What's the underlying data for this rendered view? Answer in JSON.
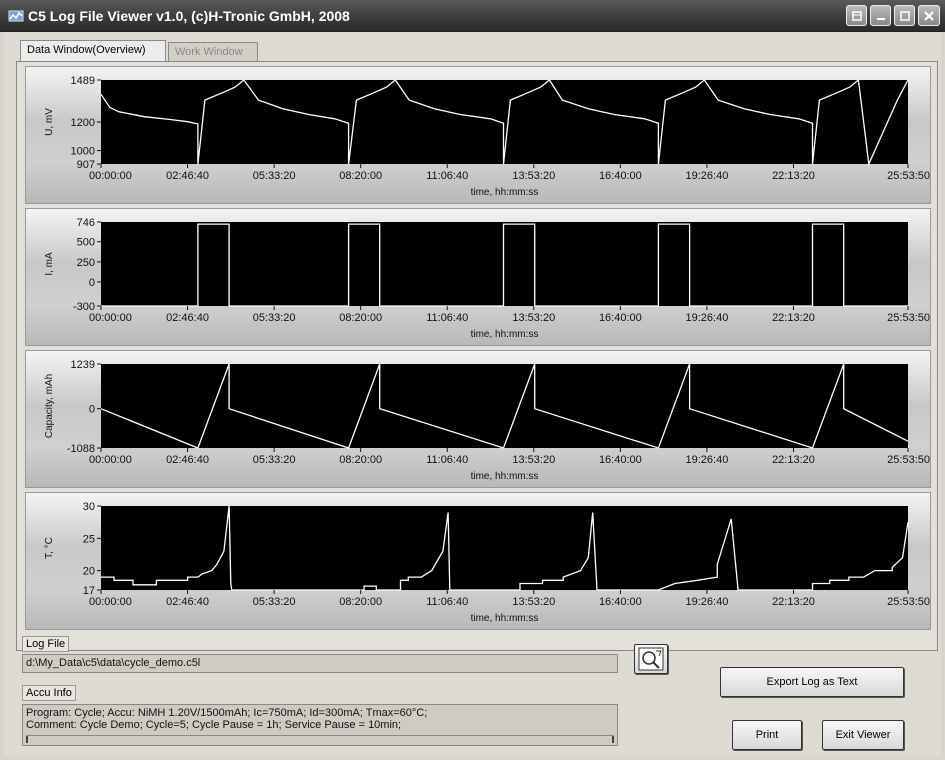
{
  "window": {
    "title": "C5 Log File Viewer v1.0, (c)H-Tronic GmbH, 2008"
  },
  "tabs": [
    {
      "label": "Data Window(Overview)",
      "active": true
    },
    {
      "label": "Work Window",
      "active": false
    }
  ],
  "x_axis": {
    "label": "time, hh:mm:ss",
    "ticks": [
      "00:00:00",
      "02:46:40",
      "05:33:20",
      "08:20:00",
      "11:06:40",
      "13:53:20",
      "16:40:00",
      "19:26:40",
      "22:13:20",
      "25:53:50"
    ]
  },
  "chart_data": [
    {
      "type": "line",
      "ylabel": "U, mV",
      "xlabel": "time, hh:mm:ss",
      "yticks": [
        "1489",
        "1200",
        "1000",
        "907"
      ],
      "ylim": [
        907,
        1489
      ],
      "series_color": "#ffffff",
      "x": [
        0,
        1000,
        2000,
        5000,
        8000,
        10000,
        11200,
        11200,
        12000,
        14000,
        15500,
        16500,
        18200,
        21000,
        24000,
        27000,
        28600,
        28600,
        29500,
        31500,
        33000,
        34000,
        35600,
        38500,
        41500,
        45000,
        46500,
        46500,
        47300,
        49300,
        50800,
        51800,
        53300,
        56300,
        59300,
        62800,
        64400,
        64400,
        65200,
        67200,
        68700,
        69700,
        71300,
        74300,
        77300,
        80600,
        82200,
        82200,
        83000,
        85000,
        86500,
        87500,
        88100,
        88700,
        92000,
        93230
      ],
      "y": [
        1390,
        1300,
        1270,
        1235,
        1215,
        1200,
        1185,
        907,
        1350,
        1400,
        1440,
        1489,
        1350,
        1290,
        1250,
        1220,
        1190,
        907,
        1350,
        1400,
        1440,
        1489,
        1350,
        1290,
        1250,
        1220,
        1190,
        907,
        1350,
        1400,
        1440,
        1489,
        1350,
        1290,
        1250,
        1220,
        1190,
        907,
        1350,
        1400,
        1440,
        1489,
        1350,
        1290,
        1250,
        1220,
        1190,
        907,
        1350,
        1400,
        1440,
        1489,
        1200,
        907,
        1350,
        1489
      ]
    },
    {
      "type": "line",
      "ylabel": "I, mA",
      "xlabel": "time, hh:mm:ss",
      "yticks": [
        "746",
        "500",
        "250",
        "0",
        "-300"
      ],
      "ylim": [
        -300,
        746
      ],
      "series_color": "#ffffff",
      "x": [
        0,
        11200,
        11200,
        14800,
        14800,
        28600,
        28600,
        32200,
        32200,
        46500,
        46500,
        50100,
        50100,
        64400,
        64400,
        68000,
        68000,
        82200,
        82200,
        85800,
        85800,
        93230
      ],
      "y": [
        -300,
        -300,
        720,
        720,
        -300,
        -300,
        720,
        720,
        -300,
        -300,
        720,
        720,
        -300,
        -300,
        720,
        720,
        -300,
        -300,
        720,
        720,
        -300,
        -300
      ]
    },
    {
      "type": "line",
      "ylabel": "Capacity, mAh",
      "xlabel": "time, hh:mm:ss",
      "yticks": [
        "1239",
        "0",
        "-1088"
      ],
      "ylim": [
        -1088,
        1239
      ],
      "series_color": "#ffffff",
      "x": [
        0,
        11200,
        11200,
        14800,
        14800,
        28600,
        28600,
        32200,
        32200,
        46500,
        46500,
        50100,
        50100,
        64400,
        64400,
        68000,
        68000,
        82200,
        82200,
        85800,
        85800,
        93230
      ],
      "y": [
        0,
        -1088,
        -1088,
        1239,
        0,
        -1088,
        -1088,
        1239,
        0,
        -1088,
        -1088,
        1239,
        0,
        -1088,
        -1088,
        1239,
        0,
        -1088,
        -1088,
        1239,
        0,
        -900
      ]
    },
    {
      "type": "line",
      "ylabel": "T, °C",
      "xlabel": "time, hh:mm:ss",
      "yticks": [
        "30",
        "25",
        "20",
        "17"
      ],
      "ylim": [
        17,
        30
      ],
      "series_color": "#ffffff",
      "x": [
        0,
        1500,
        1500,
        3700,
        3700,
        6400,
        6400,
        10000,
        10000,
        11200,
        11700,
        12800,
        13400,
        14200,
        14800,
        15000,
        15100,
        28600,
        28600,
        30400,
        30400,
        31800,
        31800,
        34600,
        34600,
        35500,
        35500,
        37000,
        38200,
        39500,
        40100,
        40300,
        46500,
        46500,
        48400,
        48400,
        51000,
        51000,
        53400,
        53400,
        55400,
        56300,
        56800,
        57300,
        57400,
        64400,
        64400,
        66300,
        66300,
        68900,
        68900,
        71200,
        71200,
        72800,
        73600,
        74400,
        74600,
        82200,
        82200,
        84200,
        84200,
        86400,
        86400,
        88100,
        89400,
        91400,
        91400,
        92600,
        93230
      ],
      "y": [
        19,
        19,
        18.5,
        18.5,
        17.8,
        17.8,
        18.5,
        18.5,
        19,
        19,
        19.5,
        20,
        21,
        23,
        30,
        18,
        17,
        17,
        17,
        17,
        17.6,
        17.6,
        17,
        17,
        18.5,
        18.5,
        19,
        19,
        20,
        23,
        29,
        17,
        17,
        17,
        17,
        18,
        18,
        18.5,
        18.5,
        19,
        20,
        22,
        29,
        17,
        17,
        17,
        17,
        18,
        18,
        18.5,
        18.5,
        19,
        21,
        28,
        17,
        17,
        17,
        17,
        18,
        18,
        18.5,
        18.5,
        19,
        19,
        20,
        20,
        20.5,
        22,
        27.5
      ]
    }
  ],
  "log_file": {
    "label": "Log File",
    "path": "d:\\My_Data\\c5\\data\\cycle_demo.c5l"
  },
  "accu_info": {
    "label": "Accu Info",
    "line1": "Program: Cycle;  Accu: NiMH 1.20V/1500mAh; Ic=750mA; Id=300mA; Tmax=60°C;",
    "line2": "Comment: Cycle Demo; Cycle=5; Cycle Pause = 1h; Service Pause = 10min;"
  },
  "buttons": {
    "export": "Export Log as Text",
    "print": "Print",
    "exit": "Exit Viewer"
  }
}
